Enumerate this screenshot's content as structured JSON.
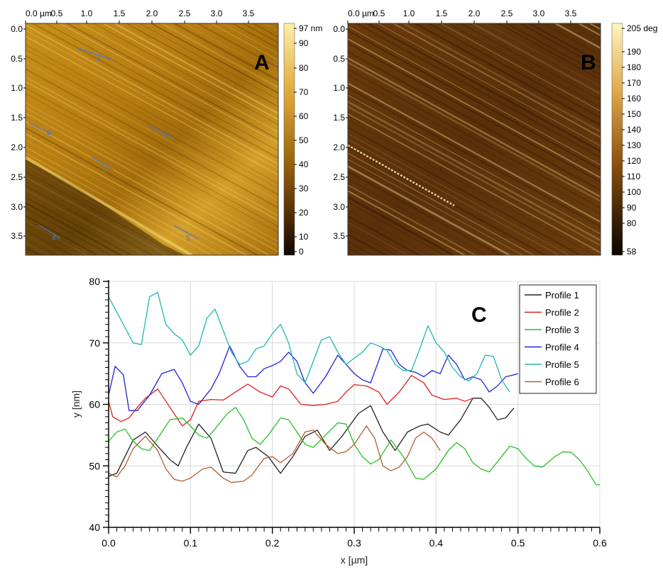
{
  "panel_a": {
    "letter": "A",
    "x_ticks": [
      "0.0 µm",
      "0.5",
      "1.0",
      "1.5",
      "2.0",
      "2.5",
      "3.0",
      "3.5"
    ],
    "y_ticks": [
      "0.0",
      "0.5",
      "1.0",
      "1.5",
      "2.0",
      "2.5",
      "3.0",
      "3.5"
    ],
    "colorbar_ticks": [
      "97 nm",
      "90",
      "80",
      "70",
      "60",
      "50",
      "40",
      "30",
      "20",
      "10",
      "0"
    ],
    "profile_labels": [
      "1",
      "2",
      "3",
      "4",
      "5",
      "6"
    ],
    "colors": {
      "dark": "#1a0d02",
      "mid": "#a2680c",
      "light": "#f7e07a"
    }
  },
  "panel_b": {
    "letter": "B",
    "x_ticks": [
      "0.0 µm",
      "0.5",
      "1.0",
      "1.5",
      "2.0",
      "2.5",
      "3.0",
      "3.5"
    ],
    "y_ticks": [
      "0.0",
      "0.5",
      "1.0",
      "1.5",
      "2.0",
      "2.5",
      "3.0",
      "3.5"
    ],
    "colorbar_ticks": [
      "205 deg",
      "190",
      "180",
      "170",
      "160",
      "150",
      "140",
      "130",
      "120",
      "110",
      "100",
      "90",
      "80",
      "58"
    ],
    "colors": {
      "dark": "#1a0d02",
      "mid": "#6e3f0c",
      "light": "#fbeea0"
    }
  },
  "panel_c": {
    "letter": "C"
  },
  "chart_data": {
    "type": "line",
    "title": "",
    "xlabel": "x [µm]",
    "ylabel": "y [nm]",
    "xlim": [
      0.0,
      0.6
    ],
    "ylim": [
      40,
      80
    ],
    "x_ticks": [
      "0.0",
      "0.1",
      "0.2",
      "0.3",
      "0.4",
      "0.5",
      "0.6"
    ],
    "y_ticks": [
      "40",
      "50",
      "60",
      "70",
      "80"
    ],
    "grid": true,
    "legend_position": "top-right",
    "series": [
      {
        "name": "Profile 1",
        "color": "#222222",
        "points": [
          [
            0.0,
            48.3
          ],
          [
            0.01,
            48.8
          ],
          [
            0.02,
            51.5
          ],
          [
            0.03,
            54.2
          ],
          [
            0.045,
            55.5
          ],
          [
            0.06,
            53.2
          ],
          [
            0.075,
            51.0
          ],
          [
            0.085,
            50.0
          ],
          [
            0.095,
            53.0
          ],
          [
            0.11,
            56.8
          ],
          [
            0.125,
            54.5
          ],
          [
            0.14,
            49.0
          ],
          [
            0.155,
            48.8
          ],
          [
            0.17,
            52.5
          ],
          [
            0.18,
            53.0
          ],
          [
            0.195,
            51.5
          ],
          [
            0.21,
            48.8
          ],
          [
            0.225,
            51.5
          ],
          [
            0.24,
            54.8
          ],
          [
            0.255,
            55.8
          ],
          [
            0.27,
            52.5
          ],
          [
            0.285,
            54.8
          ],
          [
            0.305,
            58.5
          ],
          [
            0.32,
            59.8
          ],
          [
            0.335,
            55.5
          ],
          [
            0.35,
            52.5
          ],
          [
            0.365,
            55.5
          ],
          [
            0.38,
            56.5
          ],
          [
            0.39,
            56.8
          ],
          [
            0.405,
            55.5
          ],
          [
            0.415,
            55.0
          ],
          [
            0.43,
            57.5
          ],
          [
            0.445,
            61.0
          ],
          [
            0.455,
            61.0
          ],
          [
            0.465,
            59.5
          ],
          [
            0.475,
            57.5
          ],
          [
            0.485,
            57.8
          ],
          [
            0.495,
            59.4
          ]
        ]
      },
      {
        "name": "Profile 2",
        "color": "#e02020",
        "points": [
          [
            0.0,
            60.5
          ],
          [
            0.005,
            58.0
          ],
          [
            0.015,
            57.2
          ],
          [
            0.025,
            57.8
          ],
          [
            0.035,
            59.5
          ],
          [
            0.045,
            61.0
          ],
          [
            0.06,
            62.5
          ],
          [
            0.07,
            60.5
          ],
          [
            0.08,
            58.5
          ],
          [
            0.09,
            56.5
          ],
          [
            0.1,
            57.5
          ],
          [
            0.11,
            60.5
          ],
          [
            0.125,
            60.8
          ],
          [
            0.14,
            60.7
          ],
          [
            0.155,
            62.0
          ],
          [
            0.17,
            63.3
          ],
          [
            0.185,
            62.0
          ],
          [
            0.2,
            61.2
          ],
          [
            0.21,
            63.0
          ],
          [
            0.22,
            62.5
          ],
          [
            0.235,
            60.0
          ],
          [
            0.25,
            59.8
          ],
          [
            0.265,
            60.0
          ],
          [
            0.28,
            60.5
          ],
          [
            0.29,
            62.0
          ],
          [
            0.3,
            63.2
          ],
          [
            0.315,
            63.0
          ],
          [
            0.33,
            62.0
          ],
          [
            0.34,
            60.0
          ],
          [
            0.355,
            62.0
          ],
          [
            0.37,
            64.7
          ],
          [
            0.385,
            63.5
          ],
          [
            0.395,
            61.5
          ],
          [
            0.41,
            60.8
          ],
          [
            0.425,
            61.0
          ],
          [
            0.435,
            60.5
          ],
          [
            0.445,
            61.0
          ]
        ]
      },
      {
        "name": "Profile 3",
        "color": "#28c028",
        "points": [
          [
            0.0,
            54.0
          ],
          [
            0.01,
            55.5
          ],
          [
            0.02,
            56.0
          ],
          [
            0.03,
            54.0
          ],
          [
            0.04,
            52.8
          ],
          [
            0.05,
            52.5
          ],
          [
            0.065,
            55.5
          ],
          [
            0.075,
            57.5
          ],
          [
            0.09,
            57.8
          ],
          [
            0.1,
            56.5
          ],
          [
            0.11,
            55.0
          ],
          [
            0.12,
            54.5
          ],
          [
            0.13,
            56.0
          ],
          [
            0.145,
            58.5
          ],
          [
            0.155,
            59.5
          ],
          [
            0.165,
            57.5
          ],
          [
            0.175,
            54.5
          ],
          [
            0.185,
            53.5
          ],
          [
            0.195,
            55.0
          ],
          [
            0.21,
            57.8
          ],
          [
            0.22,
            57.5
          ],
          [
            0.23,
            55.5
          ],
          [
            0.24,
            53.5
          ],
          [
            0.25,
            53.0
          ],
          [
            0.265,
            55.0
          ],
          [
            0.28,
            57.0
          ],
          [
            0.29,
            56.8
          ],
          [
            0.3,
            53.5
          ],
          [
            0.31,
            51.5
          ],
          [
            0.32,
            50.3
          ],
          [
            0.33,
            51.0
          ],
          [
            0.345,
            54.2
          ],
          [
            0.36,
            51.5
          ],
          [
            0.375,
            48.0
          ],
          [
            0.385,
            47.8
          ],
          [
            0.4,
            49.5
          ],
          [
            0.415,
            52.5
          ],
          [
            0.425,
            53.8
          ],
          [
            0.435,
            52.8
          ],
          [
            0.445,
            50.5
          ],
          [
            0.455,
            49.5
          ],
          [
            0.465,
            49.0
          ],
          [
            0.48,
            51.5
          ],
          [
            0.49,
            53.2
          ],
          [
            0.5,
            52.8
          ],
          [
            0.51,
            51.2
          ],
          [
            0.52,
            50.0
          ],
          [
            0.53,
            49.8
          ],
          [
            0.545,
            51.5
          ],
          [
            0.555,
            52.3
          ],
          [
            0.565,
            52.2
          ],
          [
            0.575,
            51.0
          ],
          [
            0.585,
            49.2
          ],
          [
            0.595,
            47.0
          ],
          [
            0.605,
            46.8
          ]
        ]
      },
      {
        "name": "Profile 4",
        "color": "#2222dd",
        "points": [
          [
            0.0,
            61.5
          ],
          [
            0.008,
            66.2
          ],
          [
            0.018,
            64.8
          ],
          [
            0.025,
            59.0
          ],
          [
            0.035,
            59.0
          ],
          [
            0.05,
            61.5
          ],
          [
            0.065,
            65.0
          ],
          [
            0.08,
            65.7
          ],
          [
            0.09,
            63.5
          ],
          [
            0.1,
            60.5
          ],
          [
            0.11,
            60.0
          ],
          [
            0.125,
            62.5
          ],
          [
            0.135,
            65.0
          ],
          [
            0.148,
            69.5
          ],
          [
            0.16,
            66.2
          ],
          [
            0.17,
            64.5
          ],
          [
            0.18,
            64.5
          ],
          [
            0.19,
            65.8
          ],
          [
            0.2,
            66.3
          ],
          [
            0.21,
            67.0
          ],
          [
            0.22,
            68.5
          ],
          [
            0.23,
            67.0
          ],
          [
            0.24,
            63.5
          ],
          [
            0.25,
            61.8
          ],
          [
            0.265,
            64.5
          ],
          [
            0.28,
            68.0
          ],
          [
            0.29,
            66.5
          ],
          [
            0.3,
            65.0
          ],
          [
            0.31,
            64.0
          ],
          [
            0.32,
            63.5
          ],
          [
            0.335,
            69.0
          ],
          [
            0.345,
            68.8
          ],
          [
            0.355,
            66.5
          ],
          [
            0.365,
            65.5
          ],
          [
            0.375,
            65.2
          ],
          [
            0.385,
            64.5
          ],
          [
            0.395,
            65.5
          ],
          [
            0.405,
            65.0
          ],
          [
            0.415,
            68.0
          ],
          [
            0.425,
            66.5
          ],
          [
            0.435,
            64.0
          ],
          [
            0.445,
            64.5
          ],
          [
            0.455,
            64.0
          ],
          [
            0.465,
            62.0
          ],
          [
            0.475,
            63.0
          ],
          [
            0.485,
            64.5
          ],
          [
            0.495,
            64.8
          ],
          [
            0.5,
            65.0
          ]
        ]
      },
      {
        "name": "Profile 5",
        "color": "#20b8b0",
        "points": [
          [
            0.0,
            77.5
          ],
          [
            0.01,
            75.0
          ],
          [
            0.02,
            72.5
          ],
          [
            0.03,
            70.0
          ],
          [
            0.04,
            69.7
          ],
          [
            0.05,
            77.5
          ],
          [
            0.06,
            78.2
          ],
          [
            0.07,
            73.0
          ],
          [
            0.08,
            71.5
          ],
          [
            0.09,
            70.5
          ],
          [
            0.1,
            68.0
          ],
          [
            0.11,
            69.5
          ],
          [
            0.12,
            74.0
          ],
          [
            0.13,
            75.5
          ],
          [
            0.14,
            72.0
          ],
          [
            0.15,
            68.5
          ],
          [
            0.16,
            66.5
          ],
          [
            0.17,
            67.0
          ],
          [
            0.18,
            69.0
          ],
          [
            0.19,
            69.5
          ],
          [
            0.2,
            71.5
          ],
          [
            0.21,
            73.0
          ],
          [
            0.22,
            70.0
          ],
          [
            0.23,
            65.0
          ],
          [
            0.24,
            63.5
          ],
          [
            0.25,
            67.0
          ],
          [
            0.26,
            70.5
          ],
          [
            0.27,
            71.0
          ],
          [
            0.28,
            68.5
          ],
          [
            0.29,
            66.5
          ],
          [
            0.3,
            67.5
          ],
          [
            0.31,
            68.5
          ],
          [
            0.32,
            70.0
          ],
          [
            0.33,
            69.5
          ],
          [
            0.34,
            68.8
          ],
          [
            0.35,
            66.5
          ],
          [
            0.36,
            65.5
          ],
          [
            0.37,
            65.5
          ],
          [
            0.38,
            69.0
          ],
          [
            0.39,
            72.8
          ],
          [
            0.4,
            70.0
          ],
          [
            0.41,
            68.5
          ],
          [
            0.42,
            66.0
          ],
          [
            0.43,
            64.5
          ],
          [
            0.44,
            63.8
          ],
          [
            0.45,
            65.0
          ],
          [
            0.46,
            68.0
          ],
          [
            0.47,
            67.8
          ],
          [
            0.48,
            64.0
          ],
          [
            0.49,
            62.0
          ]
        ]
      },
      {
        "name": "Profile 6",
        "color": "#b06030",
        "points": [
          [
            0.0,
            48.8
          ],
          [
            0.01,
            48.2
          ],
          [
            0.02,
            50.0
          ],
          [
            0.03,
            52.8
          ],
          [
            0.045,
            54.8
          ],
          [
            0.06,
            52.5
          ],
          [
            0.07,
            49.5
          ],
          [
            0.08,
            47.8
          ],
          [
            0.09,
            47.5
          ],
          [
            0.1,
            48.0
          ],
          [
            0.115,
            49.5
          ],
          [
            0.125,
            49.8
          ],
          [
            0.14,
            48.0
          ],
          [
            0.15,
            47.3
          ],
          [
            0.165,
            47.5
          ],
          [
            0.175,
            48.5
          ],
          [
            0.19,
            51.2
          ],
          [
            0.2,
            51.5
          ],
          [
            0.21,
            50.5
          ],
          [
            0.225,
            52.0
          ],
          [
            0.24,
            55.5
          ],
          [
            0.25,
            55.8
          ],
          [
            0.265,
            53.5
          ],
          [
            0.28,
            52.0
          ],
          [
            0.29,
            52.3
          ],
          [
            0.3,
            53.5
          ],
          [
            0.315,
            56.5
          ],
          [
            0.325,
            54.5
          ],
          [
            0.335,
            50.0
          ],
          [
            0.345,
            49.2
          ],
          [
            0.355,
            49.8
          ],
          [
            0.365,
            51.5
          ],
          [
            0.375,
            54.5
          ],
          [
            0.385,
            55.5
          ],
          [
            0.395,
            54.5
          ],
          [
            0.405,
            52.5
          ]
        ]
      }
    ]
  }
}
